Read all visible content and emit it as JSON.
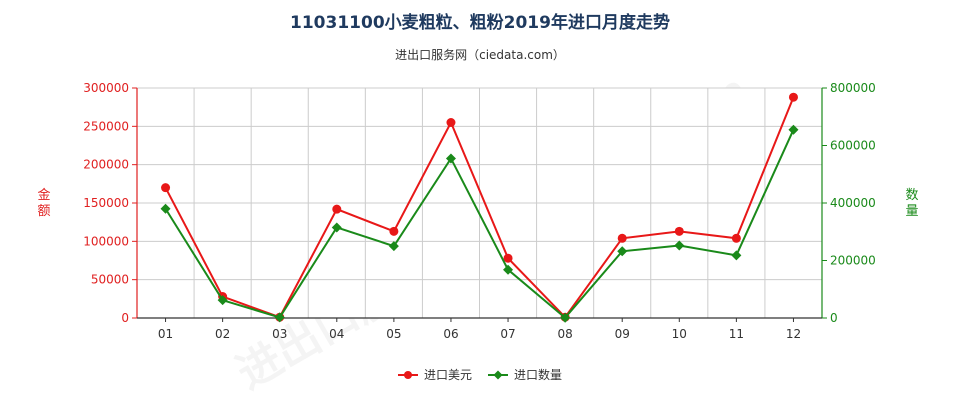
{
  "title": "11031100小麦粗粒、粗粉2019年进口月度走势",
  "subtitle": "进出口服务网（ciedata.com）",
  "watermark": "进出口服务网 ciedata.com",
  "colors": {
    "left_axis": "#e02020",
    "right_axis": "#1a8a1a",
    "series_usd": "#e81818",
    "series_qty": "#1a8a1a",
    "grid": "#cccccc"
  },
  "chart_data": {
    "type": "line",
    "categories": [
      "01",
      "02",
      "03",
      "04",
      "05",
      "06",
      "07",
      "08",
      "09",
      "10",
      "11",
      "12"
    ],
    "y_left": {
      "label": "金额",
      "ylim": [
        0,
        300000
      ],
      "ticks": [
        0,
        50000,
        100000,
        150000,
        200000,
        250000,
        300000
      ]
    },
    "y_right": {
      "label": "数量",
      "ylim": [
        0,
        800000
      ],
      "ticks": [
        0,
        200000,
        400000,
        600000,
        800000
      ]
    },
    "grid": true,
    "legend_position": "bottom",
    "series": [
      {
        "name": "进口美元",
        "axis": "left",
        "marker": "circle",
        "values": [
          170000,
          28000,
          1000,
          142000,
          113000,
          255000,
          78000,
          1000,
          104000,
          113000,
          104000,
          288000
        ]
      },
      {
        "name": "进口数量",
        "axis": "right",
        "marker": "diamond",
        "values": [
          380000,
          62000,
          2000,
          315000,
          250000,
          555000,
          168000,
          1000,
          232000,
          252000,
          218000,
          655000
        ]
      }
    ]
  }
}
